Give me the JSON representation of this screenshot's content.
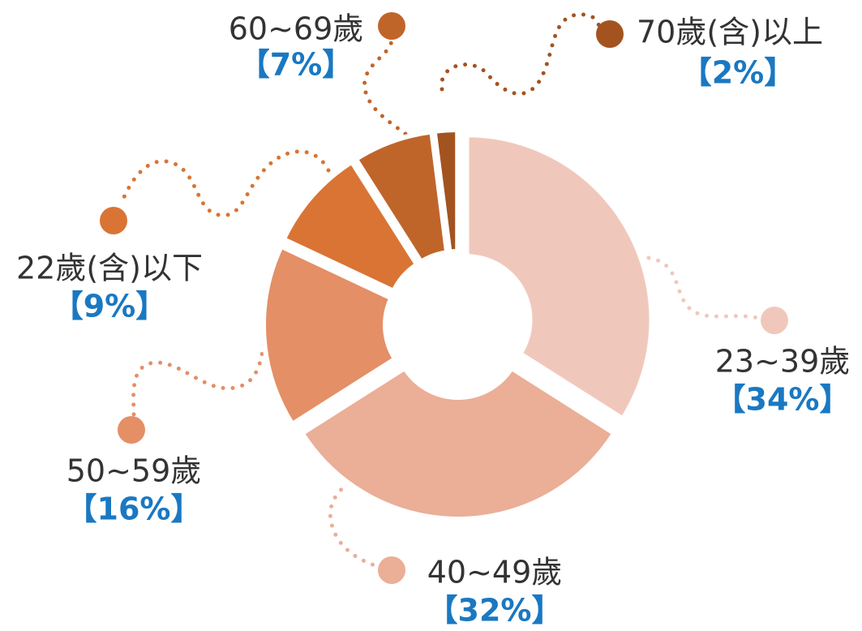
{
  "chart_data": {
    "type": "pie",
    "categories": [
      "23~39歲",
      "40~49歲",
      "50~59歲",
      "22歲(含)以下",
      "60~69歲",
      "70歲(含)以上"
    ],
    "values": [
      34,
      32,
      16,
      9,
      7,
      2
    ],
    "value_labels": [
      "【34%】",
      "【32%】",
      "【16%】",
      "【9%】",
      "【7%】",
      "【2%】"
    ],
    "colors": [
      "#f0c8bb",
      "#ebae97",
      "#e48f66",
      "#d97434",
      "#c0652a",
      "#a3531f"
    ]
  }
}
